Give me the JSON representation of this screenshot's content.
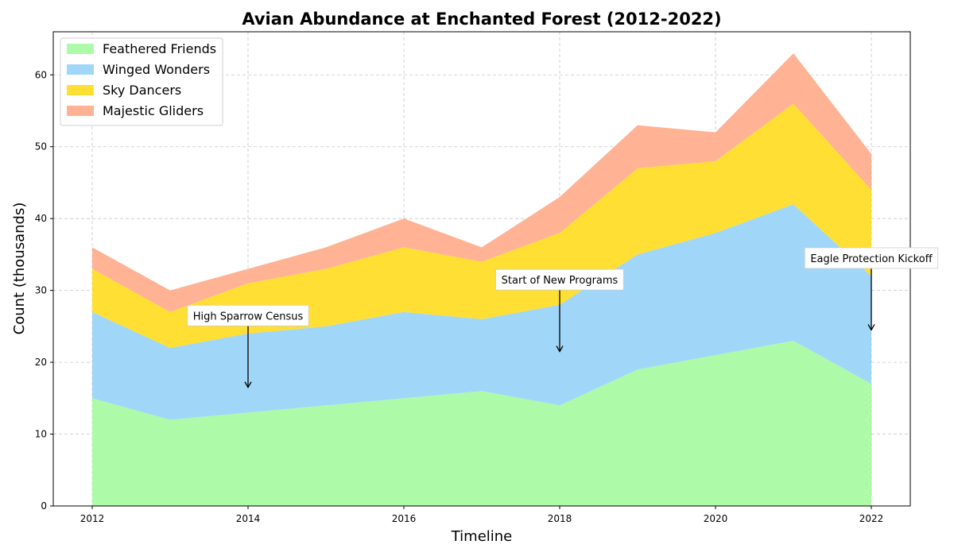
{
  "chart_data": {
    "type": "area",
    "stacked": true,
    "title": "Avian Abundance at Enchanted Forest (2012-2022)",
    "xlabel": "Timeline",
    "ylabel": "Count (thousands)",
    "x": [
      2012,
      2013,
      2014,
      2015,
      2016,
      2017,
      2018,
      2019,
      2020,
      2021,
      2022
    ],
    "xlim": [
      2011.5,
      2022.5
    ],
    "ylim": [
      0,
      66
    ],
    "xticks": [
      2012,
      2014,
      2016,
      2018,
      2020,
      2022
    ],
    "yticks": [
      0,
      10,
      20,
      30,
      40,
      50,
      60
    ],
    "grid": true,
    "legend_position": "top-left",
    "series": [
      {
        "name": "Feathered Friends",
        "color": "#adfaa9",
        "values": [
          15,
          12,
          13,
          14,
          15,
          16,
          14,
          19,
          21,
          23,
          17
        ]
      },
      {
        "name": "Winged Wonders",
        "color": "#a0d6f8",
        "values": [
          12,
          10,
          11,
          11,
          12,
          10,
          14,
          16,
          17,
          19,
          15
        ]
      },
      {
        "name": "Sky Dancers",
        "color": "#ffdf33",
        "values": [
          6,
          5,
          7,
          8,
          9,
          8,
          10,
          12,
          10,
          14,
          12
        ]
      },
      {
        "name": "Majestic Gliders",
        "color": "#ffb294",
        "values": [
          3,
          3,
          2,
          3,
          4,
          2,
          5,
          6,
          4,
          7,
          5
        ]
      }
    ],
    "annotations": [
      {
        "text": "High Sparrow Census",
        "x": 2014,
        "text_y": 26.5,
        "arrow_to_y": 16.5
      },
      {
        "text": "Start of New Programs",
        "x": 2018,
        "text_y": 31.5,
        "arrow_to_y": 21.5
      },
      {
        "text": "Eagle Protection Kickoff",
        "x": 2022,
        "text_y": 34.5,
        "arrow_to_y": 24.5
      }
    ]
  }
}
